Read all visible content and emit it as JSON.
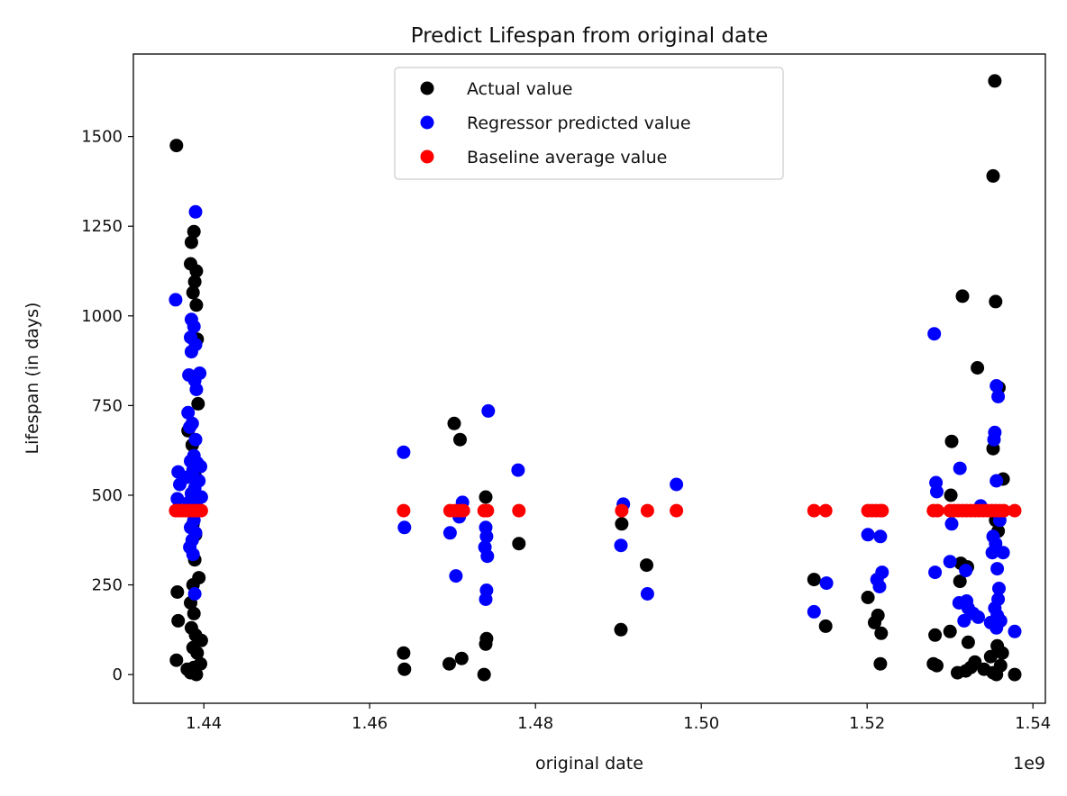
{
  "chart_data": {
    "type": "scatter",
    "title": "Predict Lifespan from original date",
    "xlabel": "original date",
    "ylabel": "Lifespan (in days)",
    "x_offset_label": "1e9",
    "xlim": [
      1.4315,
      1.5415
    ],
    "ylim": [
      -80,
      1730
    ],
    "x_ticks": [
      1.44,
      1.46,
      1.48,
      1.5,
      1.52,
      1.54
    ],
    "x_tick_labels": [
      "1.44",
      "1.46",
      "1.48",
      "1.50",
      "1.52",
      "1.54"
    ],
    "y_ticks": [
      0,
      250,
      500,
      750,
      1000,
      1250,
      1500
    ],
    "y_tick_labels": [
      "0",
      "250",
      "500",
      "750",
      "1000",
      "1250",
      "1500"
    ],
    "grid": false,
    "legend_position": "top-center",
    "series": [
      {
        "name": "Actual value",
        "color": "#000000",
        "points": [
          [
            1.4367,
            1475
          ],
          [
            1.4388,
            1235
          ],
          [
            1.4385,
            1205
          ],
          [
            1.4384,
            1145
          ],
          [
            1.4391,
            1125
          ],
          [
            1.4389,
            1095
          ],
          [
            1.4387,
            1065
          ],
          [
            1.4391,
            1030
          ],
          [
            1.4392,
            935
          ],
          [
            1.4393,
            755
          ],
          [
            1.4381,
            680
          ],
          [
            1.4386,
            640
          ],
          [
            1.439,
            550
          ],
          [
            1.4387,
            420
          ],
          [
            1.439,
            390
          ],
          [
            1.4389,
            320
          ],
          [
            1.4394,
            270
          ],
          [
            1.4387,
            250
          ],
          [
            1.4368,
            230
          ],
          [
            1.4384,
            200
          ],
          [
            1.4388,
            170
          ],
          [
            1.4369,
            150
          ],
          [
            1.4385,
            130
          ],
          [
            1.439,
            110
          ],
          [
            1.4397,
            95
          ],
          [
            1.4387,
            75
          ],
          [
            1.4392,
            60
          ],
          [
            1.4367,
            40
          ],
          [
            1.4396,
            30
          ],
          [
            1.438,
            15
          ],
          [
            1.4384,
            5
          ],
          [
            1.4391,
            0
          ],
          [
            1.4388,
            20
          ],
          [
            1.4641,
            60
          ],
          [
            1.4642,
            15
          ],
          [
            1.4702,
            700
          ],
          [
            1.4709,
            655
          ],
          [
            1.4711,
            45
          ],
          [
            1.4696,
            30
          ],
          [
            1.474,
            495
          ],
          [
            1.4741,
            100
          ],
          [
            1.474,
            85
          ],
          [
            1.4738,
            0
          ],
          [
            1.478,
            365
          ],
          [
            1.4904,
            420
          ],
          [
            1.4903,
            125
          ],
          [
            1.4934,
            305
          ],
          [
            1.5136,
            265
          ],
          [
            1.515,
            135
          ],
          [
            1.5201,
            215
          ],
          [
            1.5213,
            165
          ],
          [
            1.5209,
            145
          ],
          [
            1.5217,
            115
          ],
          [
            1.5216,
            30
          ],
          [
            1.5302,
            650
          ],
          [
            1.5301,
            500
          ],
          [
            1.5315,
            1055
          ],
          [
            1.5333,
            855
          ],
          [
            1.5354,
            1655
          ],
          [
            1.5352,
            1390
          ],
          [
            1.5355,
            1040
          ],
          [
            1.5359,
            800
          ],
          [
            1.5352,
            630
          ],
          [
            1.5364,
            545
          ],
          [
            1.5355,
            430
          ],
          [
            1.5358,
            400
          ],
          [
            1.5313,
            310
          ],
          [
            1.5321,
            300
          ],
          [
            1.5312,
            260
          ],
          [
            1.5282,
            110
          ],
          [
            1.53,
            120
          ],
          [
            1.5322,
            90
          ],
          [
            1.5357,
            80
          ],
          [
            1.528,
            30
          ],
          [
            1.5284,
            25
          ],
          [
            1.5309,
            5
          ],
          [
            1.5319,
            10
          ],
          [
            1.5325,
            20
          ],
          [
            1.533,
            35
          ],
          [
            1.5341,
            15
          ],
          [
            1.5352,
            5
          ],
          [
            1.5356,
            0
          ],
          [
            1.5361,
            25
          ],
          [
            1.5378,
            0
          ],
          [
            1.5349,
            50
          ],
          [
            1.5363,
            60
          ]
        ]
      },
      {
        "name": "Regressor predicted value",
        "color": "#0000ff",
        "points": [
          [
            1.439,
            1290
          ],
          [
            1.4366,
            1045
          ],
          [
            1.4385,
            990
          ],
          [
            1.4388,
            970
          ],
          [
            1.4384,
            940
          ],
          [
            1.439,
            920
          ],
          [
            1.4385,
            900
          ],
          [
            1.4382,
            835
          ],
          [
            1.4395,
            840
          ],
          [
            1.4389,
            820
          ],
          [
            1.4391,
            795
          ],
          [
            1.4381,
            730
          ],
          [
            1.4386,
            700
          ],
          [
            1.4383,
            690
          ],
          [
            1.439,
            655
          ],
          [
            1.4388,
            610
          ],
          [
            1.4384,
            595
          ],
          [
            1.4392,
            590
          ],
          [
            1.4387,
            570
          ],
          [
            1.4396,
            580
          ],
          [
            1.4369,
            565
          ],
          [
            1.438,
            550
          ],
          [
            1.4394,
            540
          ],
          [
            1.4371,
            530
          ],
          [
            1.4389,
            520
          ],
          [
            1.4385,
            505
          ],
          [
            1.4397,
            495
          ],
          [
            1.4368,
            490
          ],
          [
            1.4382,
            480
          ],
          [
            1.4391,
            470
          ],
          [
            1.4388,
            430
          ],
          [
            1.4384,
            410
          ],
          [
            1.439,
            395
          ],
          [
            1.4386,
            375
          ],
          [
            1.4383,
            355
          ],
          [
            1.4387,
            335
          ],
          [
            1.4389,
            225
          ],
          [
            1.4641,
            620
          ],
          [
            1.4642,
            410
          ],
          [
            1.4743,
            735
          ],
          [
            1.4712,
            480
          ],
          [
            1.4708,
            440
          ],
          [
            1.4697,
            395
          ],
          [
            1.474,
            410
          ],
          [
            1.4741,
            385
          ],
          [
            1.4739,
            355
          ],
          [
            1.4742,
            330
          ],
          [
            1.4741,
            235
          ],
          [
            1.474,
            210
          ],
          [
            1.4704,
            275
          ],
          [
            1.4779,
            570
          ],
          [
            1.4906,
            475
          ],
          [
            1.4903,
            360
          ],
          [
            1.4935,
            225
          ],
          [
            1.497,
            530
          ],
          [
            1.5136,
            175
          ],
          [
            1.5151,
            255
          ],
          [
            1.5201,
            390
          ],
          [
            1.5216,
            385
          ],
          [
            1.5218,
            285
          ],
          [
            1.5215,
            245
          ],
          [
            1.5212,
            265
          ],
          [
            1.5281,
            950
          ],
          [
            1.5283,
            535
          ],
          [
            1.5284,
            510
          ],
          [
            1.5312,
            575
          ],
          [
            1.5302,
            420
          ],
          [
            1.53,
            315
          ],
          [
            1.5282,
            285
          ],
          [
            1.5311,
            200
          ],
          [
            1.532,
            205
          ],
          [
            1.5322,
            185
          ],
          [
            1.5328,
            170
          ],
          [
            1.5334,
            160
          ],
          [
            1.5319,
            290
          ],
          [
            1.5358,
            775
          ],
          [
            1.5356,
            805
          ],
          [
            1.5354,
            675
          ],
          [
            1.5353,
            655
          ],
          [
            1.5356,
            540
          ],
          [
            1.5352,
            385
          ],
          [
            1.5355,
            365
          ],
          [
            1.5351,
            340
          ],
          [
            1.5364,
            340
          ],
          [
            1.5357,
            295
          ],
          [
            1.5359,
            240
          ],
          [
            1.5358,
            210
          ],
          [
            1.5354,
            185
          ],
          [
            1.5357,
            165
          ],
          [
            1.5361,
            150
          ],
          [
            1.5349,
            145
          ],
          [
            1.5356,
            130
          ],
          [
            1.5378,
            120
          ],
          [
            1.536,
            430
          ],
          [
            1.5337,
            470
          ],
          [
            1.5317,
            150
          ]
        ]
      },
      {
        "name": "Baseline average value",
        "color": "#ff0000",
        "points": [
          [
            1.4366,
            457
          ],
          [
            1.437,
            457
          ],
          [
            1.4374,
            457
          ],
          [
            1.4378,
            457
          ],
          [
            1.4382,
            457
          ],
          [
            1.4386,
            457
          ],
          [
            1.439,
            457
          ],
          [
            1.4394,
            457
          ],
          [
            1.4397,
            457
          ],
          [
            1.4641,
            457
          ],
          [
            1.4697,
            457
          ],
          [
            1.4703,
            457
          ],
          [
            1.4709,
            457
          ],
          [
            1.4713,
            457
          ],
          [
            1.4738,
            457
          ],
          [
            1.4742,
            457
          ],
          [
            1.478,
            457
          ],
          [
            1.4904,
            457
          ],
          [
            1.4935,
            457
          ],
          [
            1.497,
            457
          ],
          [
            1.5136,
            457
          ],
          [
            1.515,
            457
          ],
          [
            1.5201,
            457
          ],
          [
            1.5206,
            457
          ],
          [
            1.5211,
            457
          ],
          [
            1.5216,
            457
          ],
          [
            1.5218,
            457
          ],
          [
            1.528,
            457
          ],
          [
            1.5285,
            457
          ],
          [
            1.53,
            457
          ],
          [
            1.5305,
            457
          ],
          [
            1.531,
            457
          ],
          [
            1.5315,
            457
          ],
          [
            1.532,
            457
          ],
          [
            1.5325,
            457
          ],
          [
            1.533,
            457
          ],
          [
            1.5335,
            457
          ],
          [
            1.534,
            457
          ],
          [
            1.5345,
            457
          ],
          [
            1.535,
            457
          ],
          [
            1.5355,
            457
          ],
          [
            1.536,
            457
          ],
          [
            1.5365,
            457
          ],
          [
            1.5378,
            457
          ]
        ]
      }
    ]
  }
}
